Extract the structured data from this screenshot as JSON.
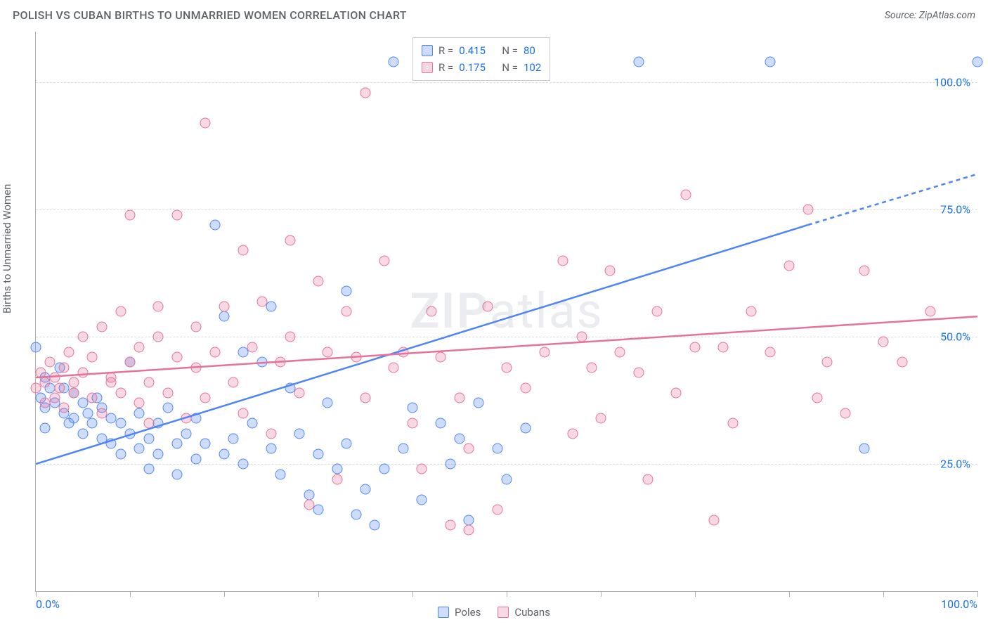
{
  "title": "POLISH VS CUBAN BIRTHS TO UNMARRIED WOMEN CORRELATION CHART",
  "source": "Source: ZipAtlas.com",
  "ylabel": "Births to Unmarried Women",
  "watermark_a": "ZIP",
  "watermark_b": "atlas",
  "chart": {
    "type": "scatter",
    "xlim": [
      0,
      100
    ],
    "ylim": [
      0,
      110
    ],
    "x_ticks": [
      0,
      10,
      20,
      30,
      40,
      50,
      60,
      70,
      80,
      90,
      100
    ],
    "x_tick_labels": {
      "0": "0.0%",
      "100": "100.0%"
    },
    "y_gridlines": [
      25,
      50,
      75,
      100
    ],
    "y_tick_labels": {
      "25": "25.0%",
      "50": "50.0%",
      "75": "75.0%",
      "100": "100.0%"
    },
    "grid_color": "#d9dce0",
    "axis_color": "#b0b0b0",
    "background": "#ffffff",
    "tick_label_color": "#1a73e8",
    "label_fontsize": 15,
    "tick_fontsize": 16,
    "marker_size": 15,
    "marker_opacity_fill": 0.28,
    "marker_border_width": 1.4,
    "series": [
      {
        "name": "Poles",
        "color": "#4f86f7",
        "fill": "rgba(79,134,247,0.28)",
        "R": "0.415",
        "N": "80",
        "trend": {
          "x1": 0,
          "y1": 25,
          "x2": 82,
          "y2": 72,
          "xd": 100,
          "yd": 82,
          "width": 2.5
        },
        "points": [
          [
            0,
            48
          ],
          [
            0.5,
            38
          ],
          [
            1,
            42
          ],
          [
            1,
            36
          ],
          [
            1.5,
            40
          ],
          [
            2,
            37
          ],
          [
            2.5,
            44
          ],
          [
            3,
            35
          ],
          [
            3,
            40
          ],
          [
            3.5,
            33
          ],
          [
            4,
            39
          ],
          [
            4,
            34
          ],
          [
            5,
            37
          ],
          [
            5,
            31
          ],
          [
            5.5,
            35
          ],
          [
            6,
            33
          ],
          [
            6.5,
            38
          ],
          [
            7,
            30
          ],
          [
            7,
            36
          ],
          [
            8,
            34
          ],
          [
            8,
            29
          ],
          [
            9,
            33
          ],
          [
            9,
            27
          ],
          [
            10,
            31
          ],
          [
            10,
            45
          ],
          [
            11,
            35
          ],
          [
            11,
            28
          ],
          [
            12,
            30
          ],
          [
            12,
            24
          ],
          [
            13,
            33
          ],
          [
            13,
            27
          ],
          [
            14,
            36
          ],
          [
            15,
            29
          ],
          [
            15,
            23
          ],
          [
            16,
            31
          ],
          [
            17,
            26
          ],
          [
            17,
            34
          ],
          [
            18,
            29
          ],
          [
            19,
            72
          ],
          [
            20,
            27
          ],
          [
            20,
            54
          ],
          [
            21,
            30
          ],
          [
            22,
            47
          ],
          [
            22,
            25
          ],
          [
            23,
            33
          ],
          [
            24,
            45
          ],
          [
            25,
            28
          ],
          [
            25,
            56
          ],
          [
            26,
            23
          ],
          [
            27,
            40
          ],
          [
            28,
            31
          ],
          [
            29,
            19
          ],
          [
            30,
            27
          ],
          [
            30,
            16
          ],
          [
            31,
            37
          ],
          [
            32,
            24
          ],
          [
            33,
            29
          ],
          [
            33,
            59
          ],
          [
            34,
            15
          ],
          [
            35,
            20
          ],
          [
            36,
            13
          ],
          [
            37,
            24
          ],
          [
            38,
            104
          ],
          [
            39,
            28
          ],
          [
            40,
            36
          ],
          [
            41,
            18
          ],
          [
            43,
            33
          ],
          [
            44,
            25
          ],
          [
            45,
            30
          ],
          [
            46,
            14
          ],
          [
            47,
            37
          ],
          [
            49,
            28
          ],
          [
            50,
            22
          ],
          [
            51,
            104
          ],
          [
            52,
            32
          ],
          [
            64,
            104
          ],
          [
            78,
            104
          ],
          [
            88,
            28
          ],
          [
            100,
            104
          ],
          [
            1,
            32
          ]
        ]
      },
      {
        "name": "Cubans",
        "color": "#e57399",
        "fill": "rgba(229,115,153,0.28)",
        "R": "0.175",
        "N": "102",
        "trend": {
          "x1": 0,
          "y1": 42,
          "x2": 100,
          "y2": 54,
          "width": 2.5
        },
        "points": [
          [
            0,
            40
          ],
          [
            0.5,
            43
          ],
          [
            1,
            41
          ],
          [
            1,
            37
          ],
          [
            1.5,
            45
          ],
          [
            2,
            42
          ],
          [
            2,
            38
          ],
          [
            2.5,
            40
          ],
          [
            3,
            44
          ],
          [
            3,
            36
          ],
          [
            3.5,
            47
          ],
          [
            4,
            41
          ],
          [
            4,
            39
          ],
          [
            5,
            43
          ],
          [
            5,
            50
          ],
          [
            6,
            38
          ],
          [
            6,
            46
          ],
          [
            7,
            35
          ],
          [
            7,
            52
          ],
          [
            8,
            42
          ],
          [
            8,
            41
          ],
          [
            9,
            55
          ],
          [
            9,
            39
          ],
          [
            10,
            45
          ],
          [
            10,
            74
          ],
          [
            11,
            37
          ],
          [
            11,
            48
          ],
          [
            12,
            41
          ],
          [
            12,
            33
          ],
          [
            13,
            50
          ],
          [
            13,
            56
          ],
          [
            14,
            39
          ],
          [
            15,
            46
          ],
          [
            15,
            74
          ],
          [
            16,
            34
          ],
          [
            17,
            52
          ],
          [
            17,
            44
          ],
          [
            18,
            92
          ],
          [
            18,
            38
          ],
          [
            19,
            47
          ],
          [
            20,
            56
          ],
          [
            21,
            41
          ],
          [
            22,
            67
          ],
          [
            22,
            35
          ],
          [
            23,
            48
          ],
          [
            24,
            57
          ],
          [
            25,
            31
          ],
          [
            26,
            45
          ],
          [
            27,
            69
          ],
          [
            27,
            50
          ],
          [
            28,
            39
          ],
          [
            29,
            17
          ],
          [
            30,
            61
          ],
          [
            31,
            47
          ],
          [
            32,
            22
          ],
          [
            33,
            55
          ],
          [
            34,
            46
          ],
          [
            35,
            98
          ],
          [
            35,
            38
          ],
          [
            37,
            65
          ],
          [
            38,
            44
          ],
          [
            39,
            47
          ],
          [
            40,
            33
          ],
          [
            41,
            24
          ],
          [
            42,
            55
          ],
          [
            43,
            46
          ],
          [
            44,
            13
          ],
          [
            45,
            38
          ],
          [
            46,
            28
          ],
          [
            48,
            56
          ],
          [
            49,
            16
          ],
          [
            50,
            44
          ],
          [
            52,
            40
          ],
          [
            54,
            47
          ],
          [
            56,
            65
          ],
          [
            57,
            31
          ],
          [
            58,
            50
          ],
          [
            59,
            44
          ],
          [
            60,
            34
          ],
          [
            61,
            63
          ],
          [
            62,
            47
          ],
          [
            64,
            43
          ],
          [
            65,
            22
          ],
          [
            66,
            55
          ],
          [
            68,
            39
          ],
          [
            69,
            78
          ],
          [
            70,
            48
          ],
          [
            72,
            14
          ],
          [
            73,
            48
          ],
          [
            74,
            33
          ],
          [
            76,
            55
          ],
          [
            78,
            47
          ],
          [
            80,
            64
          ],
          [
            82,
            75
          ],
          [
            84,
            45
          ],
          [
            86,
            35
          ],
          [
            88,
            63
          ],
          [
            90,
            49
          ],
          [
            92,
            45
          ],
          [
            95,
            55
          ],
          [
            83,
            38
          ],
          [
            46,
            12
          ]
        ]
      }
    ]
  },
  "legend_bottom": [
    {
      "label": "Poles",
      "color": "#4f86f7",
      "fill": "rgba(79,134,247,0.28)"
    },
    {
      "label": "Cubans",
      "color": "#e57399",
      "fill": "rgba(229,115,153,0.28)"
    }
  ]
}
